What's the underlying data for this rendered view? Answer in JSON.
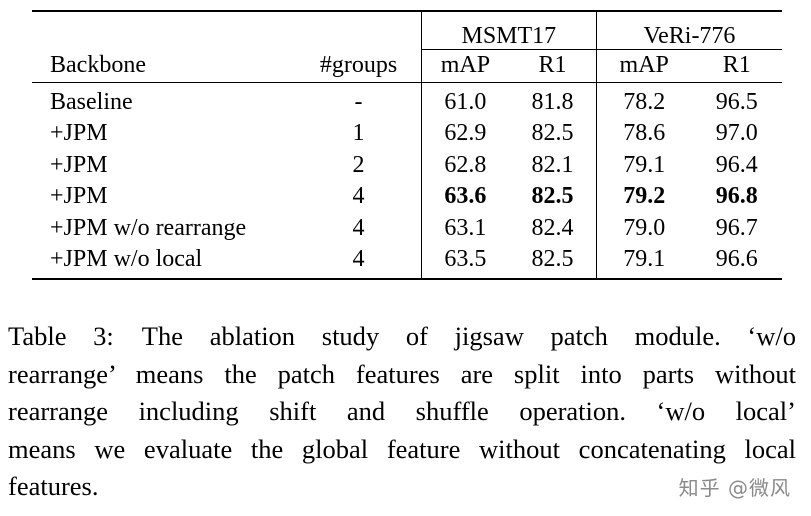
{
  "table": {
    "dataset_headers": [
      "MSMT17",
      "VeRi-776"
    ],
    "column_headers": {
      "backbone": "Backbone",
      "groups": "#groups",
      "map1": "mAP",
      "r1a": "R1",
      "map2": "mAP",
      "r1b": "R1"
    },
    "rows": [
      {
        "backbone": "Baseline",
        "groups": "-",
        "msmt_map": "61.0",
        "msmt_r1": "81.8",
        "veri_map": "78.2",
        "veri_r1": "96.5"
      },
      {
        "backbone": "+JPM",
        "groups": "1",
        "msmt_map": "62.9",
        "msmt_r1": "82.5",
        "veri_map": "78.6",
        "veri_r1": "97.0"
      },
      {
        "backbone": "+JPM",
        "groups": "2",
        "msmt_map": "62.8",
        "msmt_r1": "82.1",
        "veri_map": "79.1",
        "veri_r1": "96.4"
      },
      {
        "backbone": "+JPM",
        "groups": "4",
        "msmt_map": "63.6",
        "msmt_r1": "82.5",
        "veri_map": "79.2",
        "veri_r1": "96.8"
      },
      {
        "backbone": "+JPM w/o rearrange",
        "groups": "4",
        "msmt_map": "63.1",
        "msmt_r1": "82.4",
        "veri_map": "79.0",
        "veri_r1": "96.7"
      },
      {
        "backbone": "+JPM w/o local",
        "groups": "4",
        "msmt_map": "63.5",
        "msmt_r1": "82.5",
        "veri_map": "79.1",
        "veri_r1": "96.6"
      }
    ]
  },
  "caption": {
    "label": "Table 3:",
    "lines": [
      "The ablation study of jigsaw patch module. ‘w/o",
      "rearrange’ means the patch features are split into parts without",
      "rearrange including shift and shuffle operation. ‘w/o local’",
      "means we evaluate the global feature without concatenating local",
      "features."
    ]
  },
  "watermark": "知乎 @微风"
}
